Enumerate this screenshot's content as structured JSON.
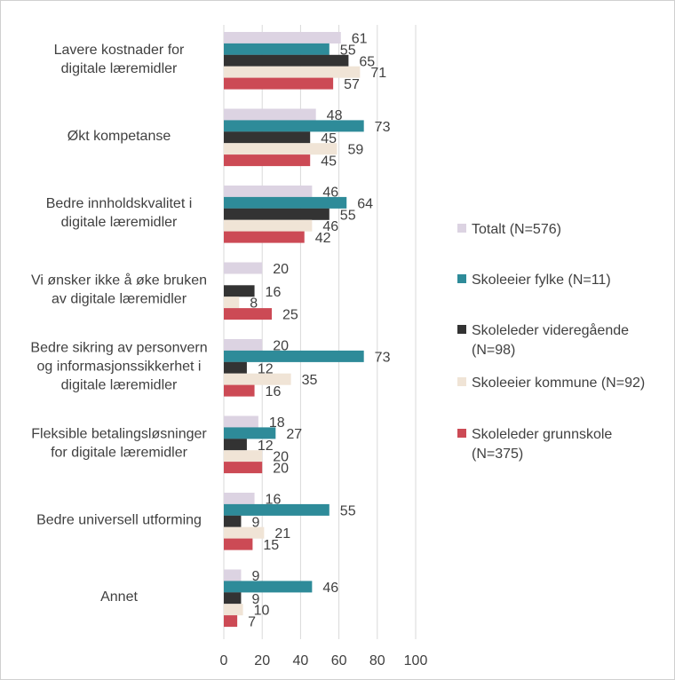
{
  "chart_data": {
    "type": "bar",
    "orientation": "horizontal",
    "title": "",
    "xlabel": "",
    "ylabel": "",
    "xlim": [
      0,
      100
    ],
    "xticks": [
      0,
      20,
      40,
      60,
      80,
      100
    ],
    "grid": true,
    "legend_position": "right",
    "categories": [
      [
        "Lavere kostnader for",
        "digitale læremidler"
      ],
      [
        "Økt kompetanse"
      ],
      [
        "Bedre innholdskvalitet i",
        "digitale læremidler"
      ],
      [
        "Vi ønsker ikke å øke bruken",
        "av digitale læremidler"
      ],
      [
        "Bedre sikring av personvern",
        "og informasjonssikkerhet i",
        "digitale læremidler"
      ],
      [
        "Fleksible betalingsløsninger",
        "for digitale læremidler"
      ],
      [
        "Bedre universell utforming"
      ],
      [
        "Annet"
      ]
    ],
    "series": [
      {
        "name": [
          "Totalt (N=576)"
        ],
        "color": "#dcd3e2",
        "values": [
          61,
          48,
          46,
          20,
          20,
          18,
          16,
          9
        ]
      },
      {
        "name": [
          "Skoleeier fylke (N=11)"
        ],
        "color": "#2e8b99",
        "values": [
          55,
          73,
          64,
          null,
          73,
          27,
          55,
          46
        ]
      },
      {
        "name": [
          "Skoleleder videregående",
          "(N=98)"
        ],
        "color": "#333333",
        "values": [
          65,
          45,
          55,
          16,
          12,
          12,
          9,
          9
        ]
      },
      {
        "name": [
          "Skoleeier kommune (N=92)"
        ],
        "color": "#f0e4d6",
        "values": [
          71,
          59,
          46,
          8,
          35,
          20,
          21,
          10
        ]
      },
      {
        "name": [
          "Skoleleder grunnskole",
          "(N=375)"
        ],
        "color": "#cc4a55",
        "values": [
          57,
          45,
          42,
          25,
          16,
          20,
          15,
          7
        ]
      }
    ]
  }
}
